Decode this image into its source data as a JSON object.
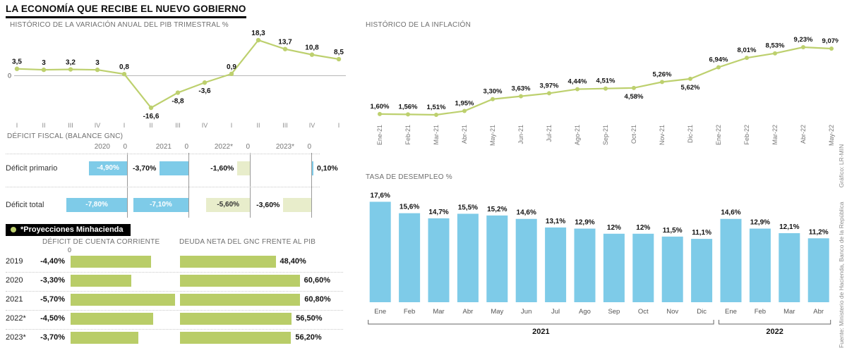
{
  "meta": {
    "title": "LA ECONOMÍA QUE RECIBE EL NUEVO GOBIERNO",
    "source": "Fuente: Ministerio de Hacienda, Banco de la República",
    "credit": "Gráfico: LR-MIN"
  },
  "colors": {
    "olive": "#bdd06e",
    "blue": "#7ecbe8",
    "pale": "#e8edcb",
    "green": "#b9cd68"
  },
  "chart_data": [
    {
      "id": "pib",
      "type": "line",
      "title": "HISTÓRICO DE LA VARIACIÓN ANUAL DEL PIB TRIMESTRAL %",
      "zero_label": "0",
      "categories": [
        "I",
        "II",
        "III",
        "IV",
        "I",
        "II",
        "III",
        "IV",
        "I",
        "II",
        "III",
        "IV",
        "I"
      ],
      "values": [
        3.5,
        3,
        3.2,
        3,
        0.8,
        -16.6,
        -8.8,
        -3.6,
        0.9,
        18.3,
        13.7,
        10.8,
        8.5
      ],
      "labels": [
        "3,5",
        "3",
        "3,2",
        "3",
        "0,8",
        "-16,6",
        "-8,8",
        "-3,6",
        "0,9",
        "18,3",
        "13,7",
        "10,8",
        "8,5"
      ]
    },
    {
      "id": "inflacion",
      "type": "line",
      "title": "HISTÓRICO DE LA INFLACIÓN",
      "categories": [
        "Ene-21",
        "Feb-21",
        "Mar-21",
        "Abr-21",
        "May-21",
        "Jun-21",
        "Jul-21",
        "Ago-21",
        "Sep-21",
        "Oct-21",
        "Nov-21",
        "Dic-21",
        "Ene-22",
        "Feb-22",
        "Mar-22",
        "Abr-22",
        "May-22"
      ],
      "values": [
        1.6,
        1.56,
        1.51,
        1.95,
        3.3,
        3.63,
        3.97,
        4.44,
        4.51,
        4.58,
        5.26,
        5.62,
        6.94,
        8.01,
        8.53,
        9.23,
        9.07
      ],
      "labels": [
        "1,60%",
        "1,56%",
        "1,51%",
        "1,95%",
        "3,30%",
        "3,63%",
        "3,97%",
        "4,44%",
        "4,51%",
        "4,58%",
        "5,26%",
        "5,62%",
        "6,94%",
        "8,01%",
        "8,53%",
        "9,23%",
        "9,07%"
      ],
      "label_below": [
        false,
        false,
        false,
        false,
        false,
        false,
        false,
        false,
        false,
        true,
        false,
        true,
        false,
        false,
        false,
        false,
        false
      ]
    },
    {
      "id": "fiscal",
      "type": "bar",
      "title": "DÉFICIT FISCAL (BALANCE GNC)",
      "zero_label": "0",
      "legend": "*Proyecciones Minhacienda",
      "years": [
        "2020",
        "2021",
        "2022*",
        "2023*"
      ],
      "rows": [
        {
          "label": "Déficit primario",
          "values": [
            -4.9,
            -3.7,
            -1.6,
            0.1
          ],
          "labels": [
            "-4,90%",
            "-3,70%",
            "-1,60%",
            "0,10%"
          ],
          "colors": [
            "blue",
            "blue",
            "pale",
            "blue"
          ],
          "label_pos": [
            "in",
            "left",
            "left",
            "right"
          ]
        },
        {
          "label": "Déficit total",
          "values": [
            -7.8,
            -7.1,
            -5.6,
            -3.6
          ],
          "labels": [
            "-7,80%",
            "-7,10%",
            "-5,60%",
            "-3,60%"
          ],
          "colors": [
            "blue",
            "blue",
            "pale",
            "pale"
          ],
          "label_pos": [
            "in",
            "in",
            "in-dark",
            "left"
          ]
        }
      ]
    },
    {
      "id": "cuenta_corriente",
      "type": "bar",
      "title": "DÉFICIT DE CUENTA CORRIENTE",
      "zero_label": "0",
      "categories": [
        "2019",
        "2020",
        "2021",
        "2022*",
        "2023*"
      ],
      "values": [
        -4.4,
        -3.3,
        -5.7,
        -4.5,
        -3.7
      ],
      "labels": [
        "-4,40%",
        "-3,30%",
        "-5,70%",
        "-4,50%",
        "-3,70%"
      ]
    },
    {
      "id": "deuda_neta",
      "type": "bar",
      "title": "DEUDA NETA DEL GNC FRENTE AL PIB",
      "categories": [
        "2019",
        "2020",
        "2021",
        "2022*",
        "2023*"
      ],
      "values": [
        48.4,
        60.6,
        60.8,
        56.5,
        56.2
      ],
      "labels": [
        "48,40%",
        "60,60%",
        "60,80%",
        "56,50%",
        "56,20%"
      ]
    },
    {
      "id": "desempleo",
      "type": "bar",
      "title": "TASA DE DESEMPLEO %",
      "categories": [
        "Ene",
        "Feb",
        "Mar",
        "Abr",
        "May",
        "Jun",
        "Jul",
        "Ago",
        "Sep",
        "Oct",
        "Nov",
        "Dic",
        "Ene",
        "Feb",
        "Mar",
        "Abr"
      ],
      "values": [
        17.6,
        15.6,
        14.7,
        15.5,
        15.2,
        14.6,
        13.1,
        12.9,
        12,
        12,
        11.5,
        11.1,
        14.6,
        12.9,
        12.1,
        11.2
      ],
      "labels": [
        "17,6%",
        "15,6%",
        "14,7%",
        "15,5%",
        "15,2%",
        "14,6%",
        "13,1%",
        "12,9%",
        "12%",
        "12%",
        "11,5%",
        "11,1%",
        "14,6%",
        "12,9%",
        "12,1%",
        "11,2%"
      ],
      "year_groups": [
        {
          "label": "2021",
          "start": 0,
          "end": 11
        },
        {
          "label": "2022",
          "start": 12,
          "end": 15
        }
      ]
    }
  ]
}
